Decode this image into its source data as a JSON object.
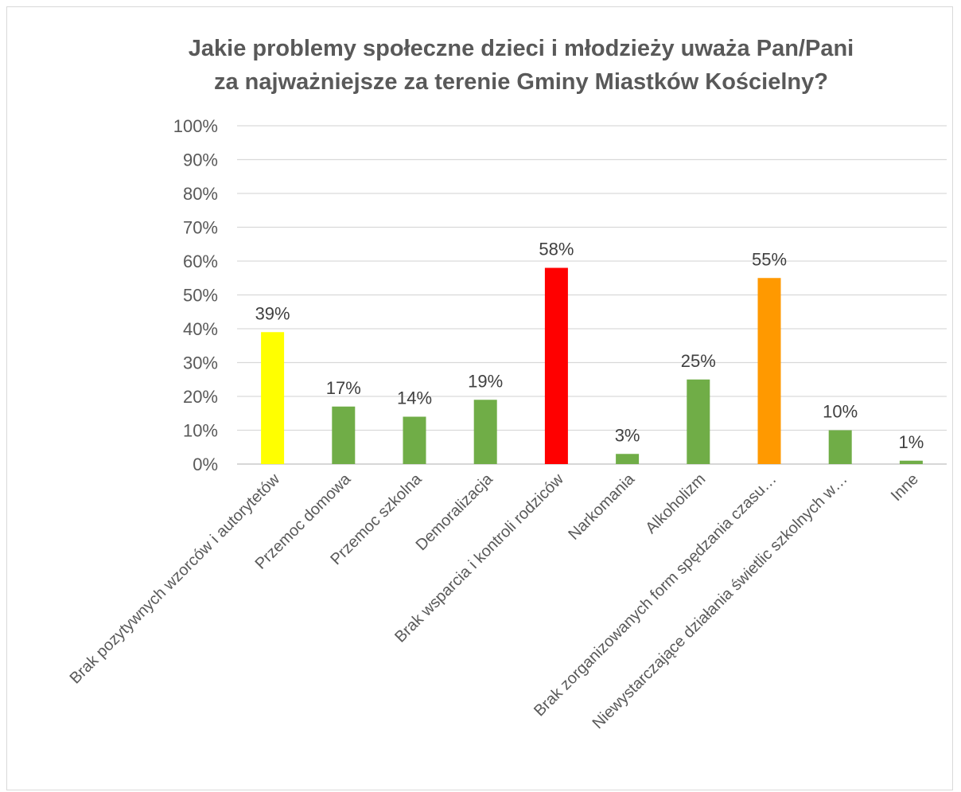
{
  "chart_data": {
    "type": "bar",
    "title_line1": "Jakie problemy społeczne dzieci i młodzieży uważa Pan/Pani",
    "title_line2": "za najważniejsze za terenie Gminy Miastków Kościelny?",
    "xlabel": "",
    "ylabel": "",
    "ylim": [
      0,
      100
    ],
    "y_ticks": [
      "0%",
      "10%",
      "20%",
      "30%",
      "40%",
      "50%",
      "60%",
      "70%",
      "80%",
      "90%",
      "100%"
    ],
    "grid": true,
    "categories": [
      "Brak pozytywnych wzorców i autorytetów",
      "Przemoc domowa",
      "Przemoc szkolna",
      "Demoralizacja",
      "Brak wsparcia i kontroli rodziców",
      "Narkomania",
      "Alkoholizm",
      "Brak zorganizowanych form spędzania czasu…",
      "Niewystarczające działania świetlic szkolnych w…",
      "Inne"
    ],
    "values": [
      39,
      17,
      14,
      19,
      58,
      3,
      25,
      55,
      10,
      1
    ],
    "data_labels": [
      "39%",
      "17%",
      "14%",
      "19%",
      "58%",
      "3%",
      "25%",
      "55%",
      "10%",
      "1%"
    ],
    "colors": [
      "#ffff00",
      "#70ad47",
      "#70ad47",
      "#70ad47",
      "#ff0000",
      "#70ad47",
      "#70ad47",
      "#ff9900",
      "#70ad47",
      "#70ad47"
    ]
  }
}
